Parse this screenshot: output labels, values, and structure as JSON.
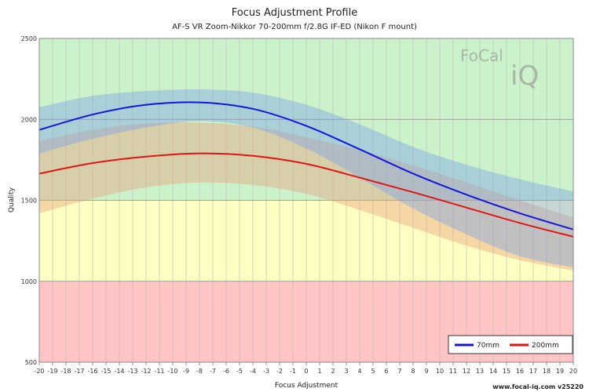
{
  "chart_data": {
    "type": "line",
    "title": "Focus Adjustment Profile",
    "subtitle": "AF-S VR Zoom-Nikkor 70-200mm f/2.8G IF-ED (Nikon F mount)",
    "xlabel": "Focus Adjustment",
    "ylabel": "Quality",
    "xlim": [
      -20,
      20
    ],
    "ylim": [
      500,
      2500
    ],
    "x_ticks": [
      "-20",
      "-19",
      "-18",
      "-17",
      "-16",
      "-15",
      "-14",
      "-13",
      "-12",
      "-11",
      "-10",
      "-9",
      "-8",
      "-7",
      "-6",
      "-5",
      "-4",
      "-3",
      "-2",
      "-1",
      "0",
      "1",
      "2",
      "3",
      "4",
      "5",
      "6",
      "7",
      "8",
      "9",
      "10",
      "11",
      "12",
      "13",
      "14",
      "15",
      "16",
      "17",
      "18",
      "19",
      "20"
    ],
    "y_ticks": [
      "500",
      "1000",
      "1500",
      "2000",
      "2500"
    ],
    "grid": true,
    "legend_position": "bottom-right",
    "background_bands": [
      {
        "from": 500,
        "to": 1000,
        "color": "#ffc4c4"
      },
      {
        "from": 1000,
        "to": 1500,
        "color": "#ffffc4"
      },
      {
        "from": 1500,
        "to": 2500,
        "color": "#ccf2cc"
      }
    ],
    "x": [
      -20,
      -16,
      -12,
      -8,
      -4,
      0,
      4,
      8,
      12,
      16,
      20
    ],
    "series": [
      {
        "name": "70mm",
        "color": "#1515e0",
        "band_color": "#7aa0e6",
        "values": [
          1935,
          2030,
          2090,
          2105,
          2065,
          1960,
          1815,
          1665,
          1535,
          1420,
          1320
        ],
        "lower": [
          1790,
          1880,
          1950,
          1990,
          1950,
          1820,
          1640,
          1450,
          1290,
          1155,
          1085
        ],
        "upper": [
          2075,
          2145,
          2175,
          2185,
          2165,
          2090,
          1970,
          1830,
          1720,
          1630,
          1555
        ]
      },
      {
        "name": "200mm",
        "color": "#e01515",
        "band_color": "#e6a07a",
        "values": [
          1665,
          1730,
          1770,
          1790,
          1775,
          1725,
          1640,
          1550,
          1455,
          1360,
          1275
        ],
        "lower": [
          1420,
          1510,
          1580,
          1610,
          1595,
          1540,
          1440,
          1330,
          1220,
          1130,
          1065
        ],
        "upper": [
          1865,
          1935,
          1975,
          1980,
          1955,
          1890,
          1810,
          1715,
          1610,
          1500,
          1395
        ]
      }
    ]
  },
  "watermark": {
    "text_top": "FoCal",
    "text_bottom": "iQ"
  },
  "footer": {
    "text": "www.focal-iq.com  v25220"
  }
}
